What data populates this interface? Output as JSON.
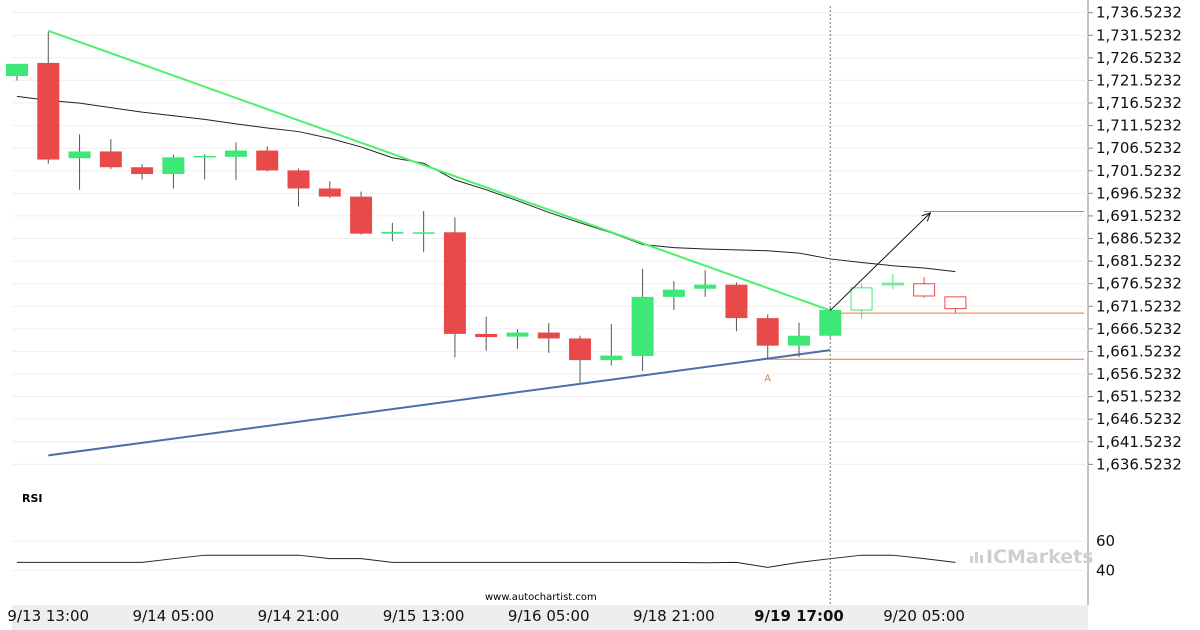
{
  "chart_data": {
    "type": "candlestick",
    "price_ticks": [
      "1,736.5232",
      "1,731.5232",
      "1,726.5232",
      "1,721.5232",
      "1,716.5232",
      "1,711.5232",
      "1,706.5232",
      "1,701.5232",
      "1,696.5232",
      "1,691.5232",
      "1,686.5232",
      "1,681.5232",
      "1,676.5232",
      "1,671.5232",
      "1,666.5232",
      "1,661.5232",
      "1,656.5232",
      "1,651.5232",
      "1,646.5232",
      "1,641.5232",
      "1,636.5232"
    ],
    "price_tick_values": [
      1736.5232,
      1731.5232,
      1726.5232,
      1721.5232,
      1716.5232,
      1711.5232,
      1706.5232,
      1701.5232,
      1696.5232,
      1691.5232,
      1686.5232,
      1681.5232,
      1676.5232,
      1671.5232,
      1666.5232,
      1661.5232,
      1656.5232,
      1651.5232,
      1646.5232,
      1641.5232,
      1636.5232
    ],
    "ylim": [
      1633.5,
      1738.0
    ],
    "x_ticks": [
      {
        "label": "9/13 13:00",
        "bar": 1
      },
      {
        "label": "9/14 05:00",
        "bar": 5
      },
      {
        "label": "9/14 21:00",
        "bar": 9
      },
      {
        "label": "9/15 13:00",
        "bar": 13
      },
      {
        "label": "9/16 05:00",
        "bar": 17
      },
      {
        "label": "9/18 21:00",
        "bar": 21
      },
      {
        "label": "9/19 17:00",
        "bar": 25,
        "bold": true
      },
      {
        "label": "9/20 05:00",
        "bar": 29
      }
    ],
    "candles": [
      {
        "o": 1722.5,
        "h": 1725.2,
        "l": 1721.5,
        "c": 1725.2
      },
      {
        "o": 1725.4,
        "h": 1732.3,
        "l": 1703.1,
        "c": 1704.0
      },
      {
        "o": 1704.3,
        "h": 1709.6,
        "l": 1697.3,
        "c": 1705.8
      },
      {
        "o": 1705.8,
        "h": 1708.5,
        "l": 1701.9,
        "c": 1702.3
      },
      {
        "o": 1702.3,
        "h": 1703.0,
        "l": 1699.6,
        "c": 1700.8
      },
      {
        "o": 1700.8,
        "h": 1705.1,
        "l": 1697.6,
        "c": 1704.5
      },
      {
        "o": 1704.5,
        "h": 1705.2,
        "l": 1699.6,
        "c": 1704.8
      },
      {
        "o": 1704.6,
        "h": 1707.8,
        "l": 1699.5,
        "c": 1706.0
      },
      {
        "o": 1706.0,
        "h": 1706.9,
        "l": 1701.4,
        "c": 1701.6
      },
      {
        "o": 1701.6,
        "h": 1702.0,
        "l": 1693.6,
        "c": 1697.6
      },
      {
        "o": 1697.6,
        "h": 1699.2,
        "l": 1695.5,
        "c": 1695.8
      },
      {
        "o": 1695.8,
        "h": 1696.9,
        "l": 1687.4,
        "c": 1687.6
      },
      {
        "o": 1687.6,
        "h": 1690.0,
        "l": 1685.9,
        "c": 1688.0
      },
      {
        "o": 1687.6,
        "h": 1692.6,
        "l": 1683.5,
        "c": 1687.9
      },
      {
        "o": 1687.9,
        "h": 1691.2,
        "l": 1660.2,
        "c": 1665.4
      },
      {
        "o": 1665.4,
        "h": 1669.2,
        "l": 1661.7,
        "c": 1664.7
      },
      {
        "o": 1664.8,
        "h": 1666.4,
        "l": 1662.1,
        "c": 1665.7
      },
      {
        "o": 1665.7,
        "h": 1667.8,
        "l": 1661.2,
        "c": 1664.4
      },
      {
        "o": 1664.4,
        "h": 1665.0,
        "l": 1654.6,
        "c": 1659.6
      },
      {
        "o": 1659.6,
        "h": 1667.6,
        "l": 1658.4,
        "c": 1660.6
      },
      {
        "o": 1660.5,
        "h": 1679.8,
        "l": 1657.2,
        "c": 1673.6
      },
      {
        "o": 1673.6,
        "h": 1677.1,
        "l": 1670.7,
        "c": 1675.2
      },
      {
        "o": 1675.4,
        "h": 1679.5,
        "l": 1673.6,
        "c": 1676.3
      },
      {
        "o": 1676.3,
        "h": 1676.8,
        "l": 1666.0,
        "c": 1668.9
      },
      {
        "o": 1668.9,
        "h": 1669.7,
        "l": 1660.0,
        "c": 1662.8
      },
      {
        "o": 1662.8,
        "h": 1667.9,
        "l": 1660.3,
        "c": 1665.0
      },
      {
        "o": 1665.0,
        "h": 1671.3,
        "l": 1664.6,
        "c": 1670.7
      },
      {
        "o": 1670.7,
        "h": 1676.6,
        "l": 1668.7,
        "c": 1675.6,
        "hollow": true
      },
      {
        "o": 1676.5,
        "h": 1678.7,
        "l": 1675.3,
        "c": 1676.6,
        "hollow": true
      },
      {
        "o": 1676.5,
        "h": 1678.0,
        "l": 1673.4,
        "c": 1673.8,
        "hollow": true
      },
      {
        "o": 1673.6,
        "h": 1673.6,
        "l": 1669.9,
        "c": 1671.0,
        "hollow": true
      }
    ],
    "moving_average": [
      1718.0,
      1717.1,
      1716.5,
      1715.5,
      1714.5,
      1713.7,
      1712.9,
      1711.9,
      1711.0,
      1710.2,
      1708.7,
      1706.8,
      1704.4,
      1703.2,
      1699.5,
      1697.3,
      1694.9,
      1692.3,
      1690.0,
      1687.8,
      1685.2,
      1684.5,
      1684.2,
      1684.0,
      1683.8,
      1683.3,
      1682.0,
      1681.2,
      1680.5,
      1680.0,
      1679.2
    ],
    "trendlines": {
      "resistance": {
        "from": {
          "bar": 1,
          "price": 1732.5
        },
        "to": {
          "bar": 26,
          "price": 1670.6
        },
        "color": "#4cef6e"
      },
      "support": {
        "from": {
          "bar": 1,
          "price": 1638.5
        },
        "to": {
          "bar": 26,
          "price": 1661.8
        },
        "color": "#4a6fa6"
      }
    },
    "levels": [
      {
        "price": 1692.5,
        "from_bar": 29,
        "color": "#e27a3a"
      },
      {
        "price": 1670.0,
        "from_bar": 26,
        "color": "#e27a3a"
      },
      {
        "price": 1659.8,
        "from_bar": 24,
        "color": "#e27a3a"
      }
    ],
    "projection": {
      "from": {
        "bar": 26,
        "price": 1670.6
      },
      "to": {
        "bar": 29.2,
        "price": 1692.2
      }
    },
    "point_label": {
      "text": "A",
      "bar": 24,
      "price": 1658.0
    },
    "current_bar": 26,
    "colors": {
      "bull": "#3ee876",
      "bear": "#e84a4a",
      "wick": "#555555",
      "ma": "#222222",
      "rsi": "#222222",
      "grid": "#cccccc",
      "panel": "#eeeeee",
      "watermark": "#cfcfcf"
    },
    "rsi": {
      "label": "RSI",
      "ticks": [
        "60",
        "40"
      ],
      "tick_values": [
        60,
        40
      ],
      "ylim": [
        21,
        78
      ],
      "values": [
        45.5,
        45.5,
        45.5,
        45.5,
        45.5,
        48.0,
        50.4,
        50.4,
        50.4,
        50.4,
        48.0,
        48.0,
        45.5,
        45.5,
        45.5,
        45.5,
        45.5,
        45.5,
        45.5,
        45.5,
        45.5,
        45.5,
        45.2,
        45.5,
        42.0,
        45.5,
        48.0,
        50.4,
        50.4,
        48.0,
        45.5
      ]
    }
  },
  "watermark": {
    "brand": "ICMarkets",
    "url": "www.autochartist.com"
  }
}
